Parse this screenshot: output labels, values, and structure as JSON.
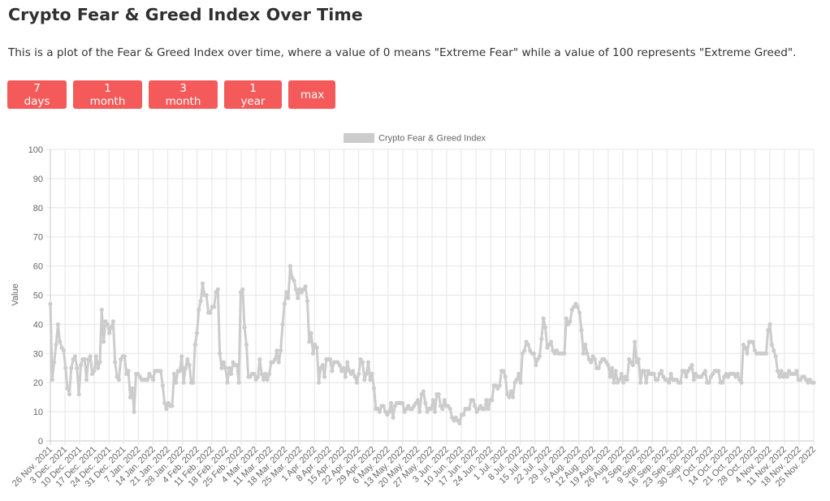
{
  "header": {
    "title": "Crypto Fear & Greed Index Over Time",
    "description": "This is a plot of the Fear & Greed Index over time, where a value of 0 means \"Extreme Fear\" while a value of 100 represents \"Extreme Greed\"."
  },
  "range_buttons": [
    {
      "label": "7 days"
    },
    {
      "label": "1 month"
    },
    {
      "label": "3 month"
    },
    {
      "label": "1 year"
    },
    {
      "label": "max"
    }
  ],
  "colors": {
    "button_bg": "#f55a5a",
    "series_line": "#cccccc",
    "grid": "#e6e6e6",
    "tick_text": "#666666"
  },
  "chart_data": {
    "type": "line",
    "title": "",
    "xlabel": "",
    "ylabel": "Value",
    "ylim": [
      0,
      100
    ],
    "y_ticks": [
      0,
      10,
      20,
      30,
      40,
      50,
      60,
      70,
      80,
      90,
      100
    ],
    "grid": true,
    "legend_position": "top-center",
    "x_labels": [
      "26 Nov. 2021",
      "3 Dec. 2021",
      "10 Dec. 2021",
      "17 Dec. 2021",
      "24 Dec. 2021",
      "31 Dec. 2021",
      "7 Jan. 2022",
      "14 Jan. 2022",
      "21 Jan. 2022",
      "28 Jan. 2022",
      "4 Feb. 2022",
      "11 Feb. 2022",
      "18 Feb. 2022",
      "25 Feb. 2022",
      "4 Mar. 2022",
      "11 Mar. 2022",
      "18 Mar. 2022",
      "25 Mar. 2022",
      "1 Apr. 2022",
      "8 Apr. 2022",
      "15 Apr. 2022",
      "22 Apr. 2022",
      "29 Apr. 2022",
      "6 May. 2022",
      "13 May. 2022",
      "20 May. 2022",
      "27 May. 2022",
      "3 Jun. 2022",
      "10 Jun. 2022",
      "17 Jun. 2022",
      "24 Jun. 2022",
      "1 Jul. 2022",
      "8 Jul. 2022",
      "15 Jul. 2022",
      "22 Jul. 2022",
      "29 Jul. 2022",
      "5 Aug. 2022",
      "12 Aug. 2022",
      "19 Aug. 2022",
      "26 Aug. 2022",
      "2 Sep. 2022",
      "9 Sep. 2022",
      "16 Sep. 2022",
      "23 Sep. 2022",
      "30 Sep. 2022",
      "7 Oct. 2022",
      "14 Oct. 2022",
      "21 Oct. 2022",
      "28 Oct. 2022",
      "4 Nov. 2022",
      "11 Nov. 2022",
      "18 Nov. 2022",
      "25 Nov. 2022"
    ],
    "series": [
      {
        "name": "Crypto Fear & Greed Index",
        "color": "#cccccc",
        "values": [
          47,
          21,
          27,
          33,
          40,
          34,
          32,
          31,
          25,
          18,
          16,
          25,
          28,
          29,
          25,
          16,
          26,
          28,
          28,
          21,
          28,
          29,
          23,
          24,
          29,
          25,
          27,
          45,
          34,
          41,
          40,
          37,
          39,
          41,
          27,
          22,
          21,
          28,
          29,
          29,
          23,
          24,
          15,
          18,
          10,
          23,
          23,
          22,
          21,
          21,
          21,
          21,
          23,
          22,
          21,
          24,
          24,
          24,
          24,
          19,
          13,
          11,
          13,
          12,
          12,
          23,
          20,
          24,
          24,
          29,
          20,
          25,
          28,
          26,
          20,
          20,
          33,
          37,
          45,
          48,
          54,
          50,
          50,
          44,
          44,
          46,
          46,
          51,
          52,
          30,
          25,
          27,
          25,
          20,
          25,
          23,
          27,
          26,
          26,
          20,
          51,
          52,
          39,
          33,
          22,
          22,
          23,
          23,
          21,
          22,
          28,
          23,
          21,
          23,
          21,
          23,
          27,
          27,
          28,
          31,
          27,
          31,
          40,
          47,
          51,
          49,
          60,
          56,
          55,
          52,
          49,
          52,
          51,
          52,
          53,
          48,
          34,
          37,
          30,
          33,
          32,
          20,
          25,
          26,
          22,
          28,
          28,
          28,
          24,
          27,
          27,
          27,
          26,
          24,
          25,
          22,
          27,
          24,
          23,
          24,
          22,
          20,
          23,
          28,
          27,
          21,
          23,
          27,
          21,
          23,
          18,
          11,
          11,
          10,
          12,
          12,
          10,
          9,
          10,
          13,
          8,
          12,
          13,
          13,
          13,
          13,
          10,
          11,
          12,
          11,
          11,
          12,
          13,
          14,
          10,
          16,
          17,
          13,
          10,
          11,
          11,
          14,
          10,
          16,
          16,
          12,
          11,
          14,
          12,
          12,
          11,
          8,
          7,
          8,
          7,
          6,
          9,
          9,
          11,
          11,
          11,
          14,
          14,
          12,
          10,
          11,
          12,
          11,
          11,
          14,
          11,
          14,
          14,
          19,
          19,
          18,
          19,
          24,
          24,
          22,
          16,
          15,
          17,
          15,
          20,
          21,
          23,
          20,
          30,
          31,
          34,
          33,
          31,
          30,
          30,
          26,
          28,
          29,
          35,
          42,
          39,
          32,
          33,
          34,
          31,
          30,
          31,
          30,
          30,
          30,
          30,
          42,
          40,
          41,
          45,
          46,
          47,
          46,
          44,
          38,
          30,
          33,
          30,
          28,
          27,
          29,
          28,
          25,
          25,
          27,
          28,
          28,
          27,
          26,
          22,
          25,
          20,
          24,
          20,
          21,
          23,
          20,
          22,
          21,
          28,
          27,
          26,
          34,
          27,
          28,
          20,
          24,
          24,
          20,
          24,
          23,
          23,
          23,
          21,
          21,
          23,
          24,
          22,
          21,
          21,
          20,
          23,
          21,
          21,
          21,
          20,
          20,
          24,
          24,
          22,
          24,
          25,
          26,
          21,
          23,
          22,
          22,
          22,
          23,
          24,
          20,
          20,
          22,
          23,
          24,
          24,
          24,
          20,
          20,
          22,
          23,
          22,
          23,
          23,
          23,
          22,
          23,
          21,
          20,
          33,
          32,
          30,
          34,
          34,
          34,
          31,
          30,
          30,
          30,
          30,
          30,
          30,
          38,
          40,
          33,
          31,
          29,
          24,
          22,
          24,
          22,
          23,
          22,
          24,
          23,
          23,
          23,
          24,
          21,
          21,
          22,
          22,
          21,
          20,
          21,
          20,
          20
        ]
      }
    ]
  }
}
